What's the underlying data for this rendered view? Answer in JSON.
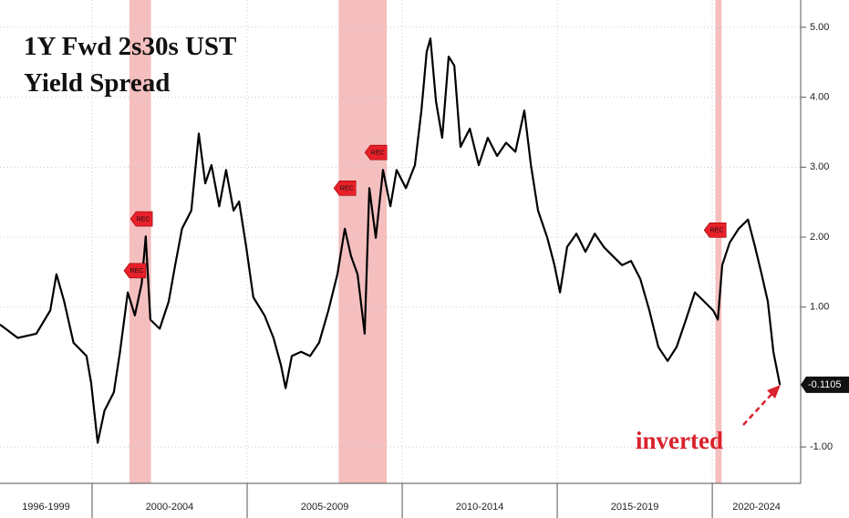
{
  "chart_data": {
    "type": "line",
    "title_lines": [
      "1Y Fwd 2s30s UST",
      "Yield Spread"
    ],
    "annotation": "inverted",
    "xlim": [
      1997.03,
      2022.85
    ],
    "xticks": [
      2000,
      2005,
      2010,
      2015,
      2020
    ],
    "period_labels": [
      "1996-1999",
      "2000-2004",
      "2005-2009",
      "2010-2014",
      "2015-2019",
      "2020-2024"
    ],
    "ylim": [
      -1.52,
      5.39
    ],
    "yticks": [
      {
        "value": 5,
        "label": "5.00"
      },
      {
        "value": 4,
        "label": "4.00"
      },
      {
        "value": 3,
        "label": "3.00"
      },
      {
        "value": 2,
        "label": "2.00"
      },
      {
        "value": 1,
        "label": "1.00"
      },
      {
        "value": -1,
        "label": "-1.00"
      }
    ],
    "grid": true,
    "recessions": [
      [
        2001.2,
        2001.9
      ],
      [
        2007.95,
        2009.5
      ],
      [
        2020.1,
        2020.3
      ]
    ],
    "recession_color": "#f2a9a9",
    "rec_markers": [
      {
        "label": "REC",
        "x": 2001.44,
        "y": 1.52
      },
      {
        "label": "REC",
        "x": 2001.65,
        "y": 2.26
      },
      {
        "label": "REC",
        "x": 2008.21,
        "y": 2.7
      },
      {
        "label": "REC",
        "x": 2009.21,
        "y": 3.21
      },
      {
        "label": "REC",
        "x": 2020.15,
        "y": 2.1
      }
    ],
    "last_value": -0.1105,
    "series": [
      {
        "color": "#000000",
        "x": [
          1997.03,
          1997.6,
          1998.2,
          1998.65,
          1998.85,
          1999.1,
          1999.4,
          1999.82,
          1999.97,
          2000.18,
          2000.4,
          2000.7,
          2000.9,
          2001.15,
          2001.38,
          2001.6,
          2001.73,
          2001.88,
          2002.18,
          2002.47,
          2002.68,
          2002.9,
          2003.2,
          2003.44,
          2003.65,
          2003.85,
          2004.1,
          2004.32,
          2004.56,
          2004.74,
          2004.97,
          2005.2,
          2005.56,
          2005.85,
          2006.09,
          2006.24,
          2006.44,
          2006.74,
          2007.03,
          2007.32,
          2007.62,
          2007.91,
          2008.15,
          2008.35,
          2008.56,
          2008.79,
          2008.94,
          2009.15,
          2009.38,
          2009.62,
          2009.82,
          2010.12,
          2010.41,
          2010.62,
          2010.79,
          2010.91,
          2011.09,
          2011.29,
          2011.5,
          2011.68,
          2011.88,
          2012.18,
          2012.47,
          2012.76,
          2013.06,
          2013.35,
          2013.65,
          2013.94,
          2014.15,
          2014.38,
          2014.68,
          2014.91,
          2015.09,
          2015.32,
          2015.62,
          2015.91,
          2016.21,
          2016.5,
          2016.79,
          2017.09,
          2017.38,
          2017.68,
          2017.97,
          2018.26,
          2018.56,
          2018.85,
          2019.15,
          2019.44,
          2019.74,
          2020.03,
          2020.18,
          2020.32,
          2020.56,
          2020.85,
          2021.15,
          2021.38,
          2021.59,
          2021.79,
          2021.97,
          2022.18
        ],
        "values": [
          0.75,
          0.56,
          0.62,
          0.95,
          1.47,
          1.08,
          0.49,
          0.3,
          -0.09,
          -0.94,
          -0.48,
          -0.22,
          0.36,
          1.21,
          0.88,
          1.34,
          2.01,
          0.82,
          0.69,
          1.08,
          1.6,
          2.12,
          2.38,
          3.48,
          2.77,
          3.03,
          2.44,
          2.96,
          2.38,
          2.51,
          1.86,
          1.14,
          0.88,
          0.56,
          0.17,
          -0.16,
          0.3,
          0.36,
          0.3,
          0.49,
          0.95,
          1.47,
          2.12,
          1.73,
          1.47,
          0.62,
          2.7,
          1.99,
          2.96,
          2.44,
          2.96,
          2.7,
          3.03,
          3.81,
          4.65,
          4.84,
          3.94,
          3.42,
          4.58,
          4.45,
          3.29,
          3.55,
          3.03,
          3.42,
          3.16,
          3.35,
          3.22,
          3.81,
          3.03,
          2.38,
          1.99,
          1.6,
          1.21,
          1.86,
          2.05,
          1.79,
          2.05,
          1.86,
          1.73,
          1.6,
          1.66,
          1.4,
          0.95,
          0.43,
          0.23,
          0.43,
          0.82,
          1.21,
          1.08,
          0.95,
          0.82,
          1.6,
          1.92,
          2.12,
          2.25,
          1.86,
          1.47,
          1.08,
          0.36,
          -0.1105
        ]
      }
    ]
  }
}
